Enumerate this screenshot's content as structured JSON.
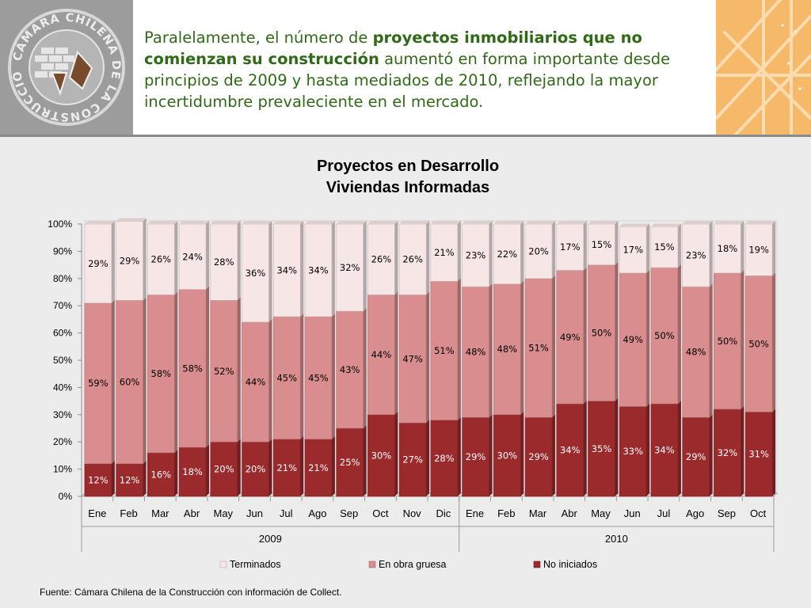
{
  "header": {
    "text_before": "Paralelamente, el número de ",
    "text_bold": "proyectos inmobiliarios que no comienzan su construcción",
    "text_after": " aumentó en forma importante desde principios de 2009 y hasta mediados de 2010, reflejando la mayor incertidumbre prevaleciente en el mercado."
  },
  "logo": {
    "ring_text": "CÁMARA CHILENA DE LA CONSTRUCCIÓN"
  },
  "chart_data": {
    "type": "bar",
    "stacked": true,
    "title": [
      "Proyectos en Desarrollo",
      "Viviendas Informadas"
    ],
    "categories": [
      "Ene",
      "Feb",
      "Mar",
      "Abr",
      "May",
      "Jun",
      "Jul",
      "Ago",
      "Sep",
      "Oct",
      "Nov",
      "Dic",
      "Ene",
      "Feb",
      "Mar",
      "Abr",
      "May",
      "Jun",
      "Jul",
      "Ago",
      "Sep",
      "Oct"
    ],
    "groups": [
      {
        "label": "2009",
        "count": 12
      },
      {
        "label": "2010",
        "count": 10
      }
    ],
    "series": [
      {
        "name": "No iniciados",
        "color": "#9b2a2c",
        "values": [
          12,
          12,
          16,
          18,
          20,
          20,
          21,
          21,
          25,
          30,
          27,
          28,
          29,
          30,
          29,
          34,
          35,
          33,
          34,
          29,
          32,
          31
        ]
      },
      {
        "name": "En obra gruesa",
        "color": "#d98d8e",
        "values": [
          59,
          60,
          58,
          58,
          52,
          44,
          45,
          45,
          43,
          44,
          47,
          51,
          48,
          48,
          51,
          49,
          50,
          49,
          50,
          48,
          50,
          50
        ]
      },
      {
        "name": "Terminados",
        "color": "#f7e6e6",
        "values": [
          29,
          29,
          26,
          24,
          28,
          36,
          34,
          34,
          32,
          26,
          26,
          21,
          23,
          22,
          20,
          17,
          15,
          17,
          15,
          23,
          18,
          19
        ]
      }
    ],
    "legend_order": [
      "Terminados",
      "En obra gruesa",
      "No iniciados"
    ],
    "y_ticks": [
      "0%",
      "10%",
      "20%",
      "30%",
      "40%",
      "50%",
      "60%",
      "70%",
      "80%",
      "90%",
      "100%"
    ],
    "ylim": [
      0,
      100
    ],
    "value_suffix": "%",
    "legend_position": "bottom"
  },
  "source": "Fuente: Cámara Chilena de la Construcción con información de Collect."
}
